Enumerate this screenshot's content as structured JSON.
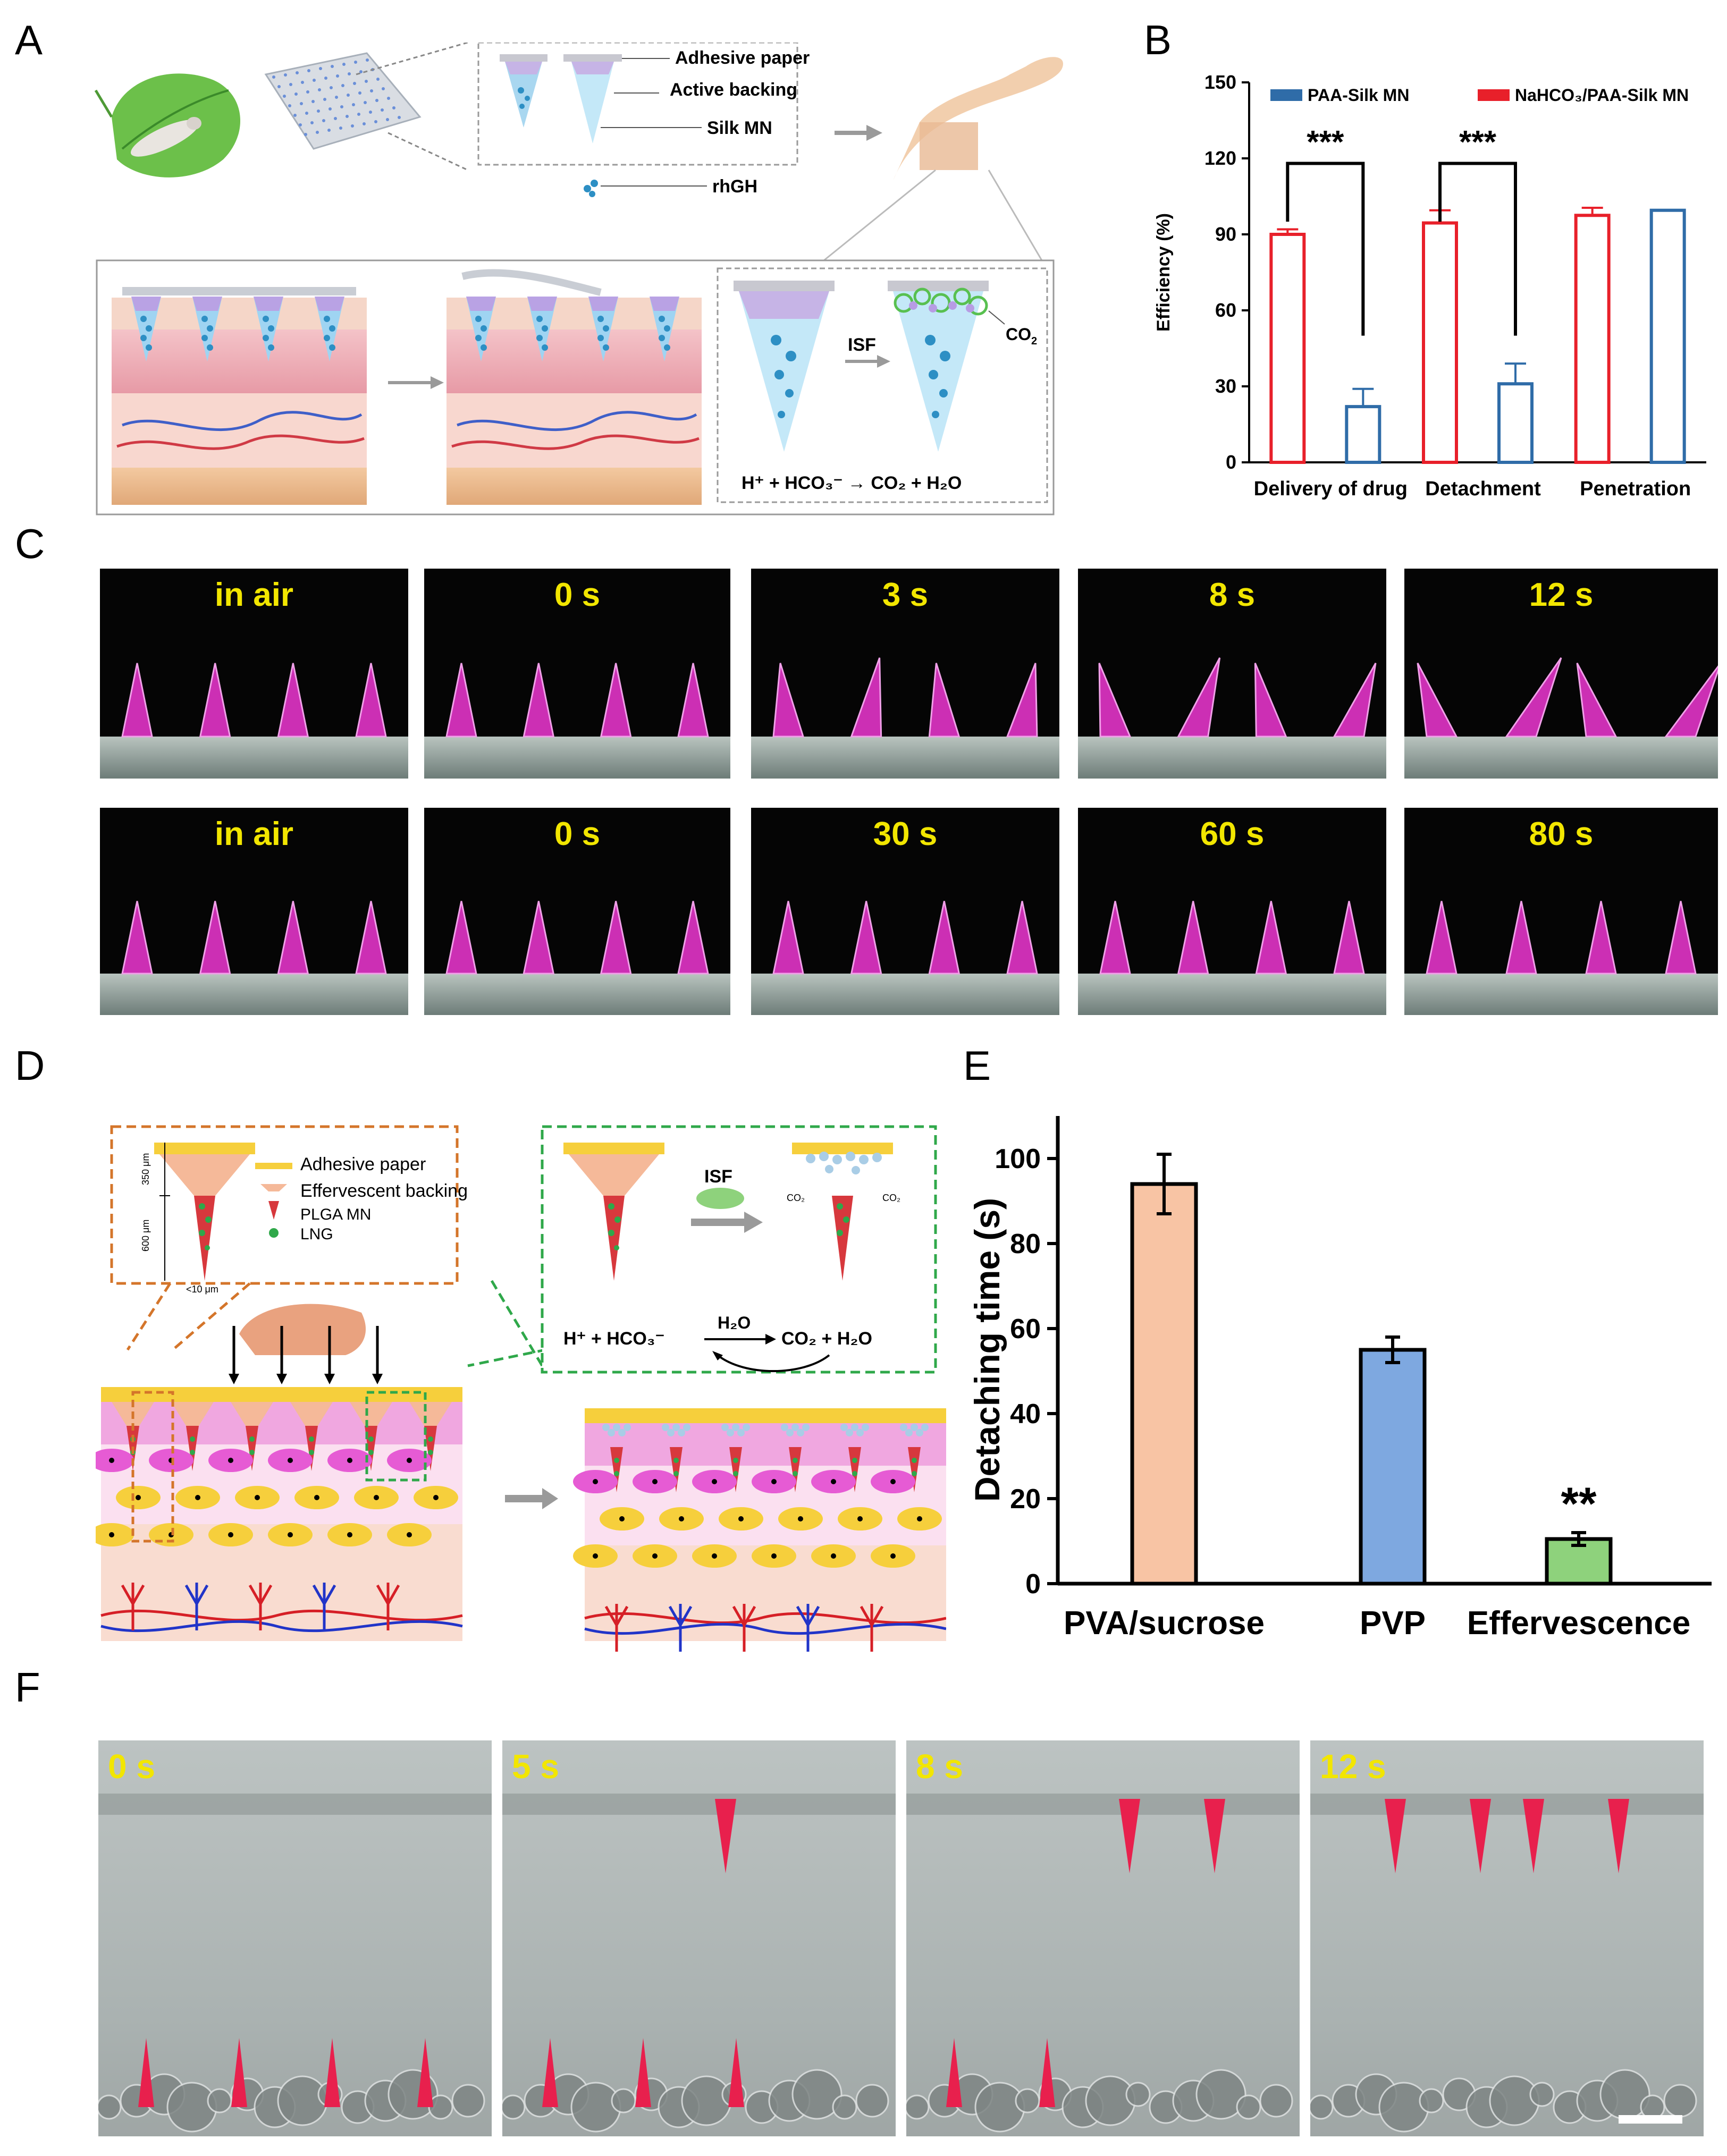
{
  "panels": {
    "A": "A",
    "B": "B",
    "C": "C",
    "D": "D",
    "E": "E",
    "F": "F"
  },
  "panel_a": {
    "labels": {
      "adhesive": "Adhesive paper",
      "active_backing": "Active backing",
      "silk_mn": "Silk MN",
      "rhgh": "rhGH",
      "isf": "ISF",
      "co2": "CO",
      "co2_sub": "2",
      "reaction": "H⁺ + HCO₃⁻ → CO₂ + H₂O"
    }
  },
  "panel_c": {
    "row1": [
      "in air",
      "0 s",
      "3 s",
      "8 s",
      "12 s"
    ],
    "row2": [
      "in air",
      "0 s",
      "30 s",
      "60 s",
      "80 s"
    ]
  },
  "panel_d": {
    "labels": {
      "adhesive": "Adhesive paper",
      "effervescent": "Effervescent backing",
      "plga": "PLGA MN",
      "lng": "LNG",
      "dim_350": "350 μm",
      "dim_600": "600 μm",
      "dim_tip": "<10 μm",
      "isf": "ISF",
      "co2": "CO₂",
      "h2o": "H₂O",
      "reaction_left": "H⁺ + HCO₃⁻",
      "reaction_right": "CO₂ + H₂O"
    }
  },
  "panel_f": {
    "frames": [
      "0 s",
      "5 s",
      "8 s",
      "12 s"
    ]
  },
  "chart_data": [
    {
      "type": "bar",
      "panel": "B",
      "title": "",
      "xlabel": "",
      "ylabel": "Efficiency (%)",
      "categories": [
        "Delivery of drug",
        "Detachment",
        "Penetration"
      ],
      "ylim": [
        0,
        150
      ],
      "yticks": [
        0,
        30,
        60,
        90,
        120,
        150
      ],
      "series": [
        {
          "name": "NaHCO₃/PAA-Silk MN",
          "color": "#e8202a",
          "values": [
            90,
            94.5,
            97.5
          ],
          "errors": [
            2,
            5,
            3
          ]
        },
        {
          "name": "PAA-Silk MN",
          "color": "#2f6ca8",
          "values": [
            22,
            31,
            99.5
          ],
          "errors": [
            7,
            8,
            0
          ]
        }
      ],
      "annotations": [
        "***",
        "***"
      ],
      "legend_position": "top",
      "grid": false
    },
    {
      "type": "bar",
      "panel": "E",
      "title": "",
      "xlabel": "",
      "ylabel": "Detaching time (s)",
      "categories": [
        "PVA/sucrose",
        "PVP",
        "Effervescence"
      ],
      "values": [
        94,
        55,
        10.5
      ],
      "errors": [
        7,
        3,
        1.5
      ],
      "colors": [
        "#f8c4a4",
        "#7ea8e0",
        "#8ed27c"
      ],
      "ylim": [
        0,
        110
      ],
      "yticks": [
        0,
        20,
        40,
        60,
        80,
        100
      ],
      "annotations": [
        "",
        "",
        "**"
      ],
      "grid": false
    }
  ]
}
